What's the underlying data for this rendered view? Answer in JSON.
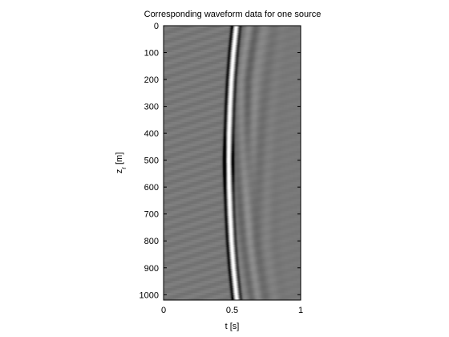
{
  "chart_data": {
    "type": "heatmap",
    "title": "Corresponding waveform data for one source",
    "xlabel": "t [s]",
    "ylabel_main": "z",
    "ylabel_sub": "r",
    "ylabel_unit": " [m]",
    "xlim": [
      0,
      1
    ],
    "ylim": [
      0,
      1020
    ],
    "y_reversed": true,
    "colormap": "gray",
    "x_ticks": [
      0,
      0.5,
      1
    ],
    "x_tick_labels": [
      "0",
      "0.5",
      "1"
    ],
    "y_ticks": [
      0,
      100,
      200,
      300,
      400,
      500,
      600,
      700,
      800,
      900,
      1000
    ],
    "y_tick_labels": [
      "0",
      "100",
      "200",
      "300",
      "400",
      "500",
      "600",
      "700",
      "800",
      "900",
      "1000"
    ],
    "direct_arrival": {
      "description_of_curve_t_vs_z": "arrival time of main pulse vs receiver depth",
      "z": [
        0,
        100,
        200,
        300,
        400,
        500,
        600,
        700,
        800,
        900,
        1000,
        1020
      ],
      "t": [
        0.53,
        0.51,
        0.495,
        0.485,
        0.478,
        0.475,
        0.478,
        0.485,
        0.495,
        0.51,
        0.53,
        0.535
      ]
    }
  }
}
